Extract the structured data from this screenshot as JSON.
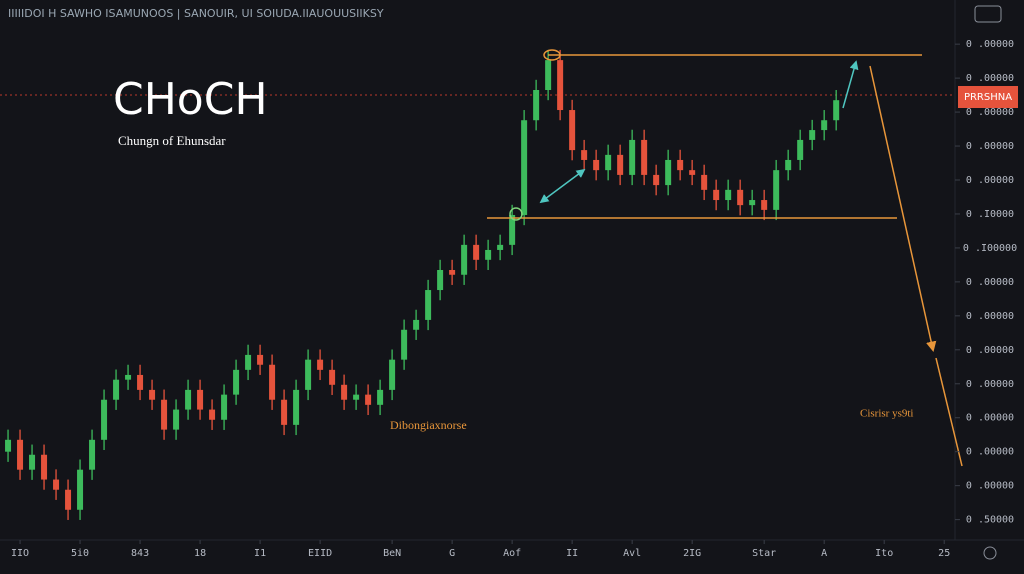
{
  "header": "IIIIIDOI H SAWHO ISAMUNOOS | SANOUIR, UI SOIUDA.IIAUOUUSIIKSY",
  "price_label": "PRRSHNA",
  "chart_data": {
    "type": "candlestick",
    "title": "CHoCH",
    "subtitle": "Chungn of Ehunsdar",
    "annotations": [
      "Dibongiaxnorse",
      "Cisrisr ys9ti"
    ],
    "up_color": "#3dbb5c",
    "down_color": "#e5533c",
    "open": [
      2.0,
      2.35,
      1.47,
      1.91,
      1.18,
      0.88,
      0.29,
      1.47,
      2.35,
      3.53,
      4.12,
      4.26,
      3.82,
      3.53,
      2.65,
      3.24,
      3.82,
      3.24,
      2.94,
      3.68,
      4.41,
      4.85,
      4.56,
      3.53,
      2.79,
      3.82,
      4.71,
      4.41,
      3.97,
      3.53,
      3.68,
      3.38,
      3.82,
      4.71,
      5.59,
      5.88,
      6.76,
      7.35,
      7.21,
      8.09,
      7.65,
      7.94,
      8.09,
      8.97,
      11.76,
      12.65,
      13.53,
      12.06,
      10.88,
      10.59,
      10.29,
      10.74,
      10.15,
      11.18,
      10.15,
      9.85,
      10.59,
      10.29,
      10.15,
      9.71,
      9.41,
      9.71,
      9.26,
      9.41,
      9.12,
      10.29,
      10.59,
      11.18,
      11.47,
      11.76
    ],
    "high": [
      2.65,
      2.65,
      2.21,
      2.21,
      1.48,
      1.18,
      1.77,
      2.65,
      3.83,
      4.42,
      4.56,
      4.56,
      4.12,
      3.83,
      3.54,
      4.12,
      4.12,
      3.54,
      3.98,
      4.71,
      5.15,
      5.15,
      4.86,
      3.83,
      4.12,
      5.01,
      5.01,
      4.71,
      4.27,
      3.98,
      3.98,
      4.12,
      5.01,
      5.89,
      6.18,
      7.06,
      7.65,
      7.65,
      8.39,
      8.39,
      8.24,
      8.39,
      9.27,
      12.06,
      12.95,
      13.83,
      13.83,
      12.36,
      11.18,
      10.89,
      11.04,
      11.04,
      11.48,
      11.48,
      10.45,
      10.89,
      10.89,
      10.59,
      10.45,
      10.01,
      10.01,
      10.01,
      9.71,
      9.71,
      10.59,
      10.89,
      11.48,
      11.77,
      12.06,
      12.65
    ],
    "low": [
      1.7,
      1.17,
      1.17,
      0.88,
      0.58,
      -0.01,
      -0.01,
      1.17,
      2.05,
      3.23,
      3.82,
      3.52,
      3.23,
      2.35,
      2.35,
      2.94,
      2.94,
      2.64,
      2.64,
      3.38,
      4.11,
      4.26,
      3.23,
      2.49,
      2.49,
      3.52,
      4.11,
      3.67,
      3.23,
      3.23,
      3.08,
      3.08,
      3.52,
      4.41,
      5.29,
      5.58,
      6.46,
      6.91,
      6.91,
      7.35,
      7.35,
      7.64,
      7.79,
      8.67,
      11.46,
      12.35,
      11.76,
      10.58,
      10.29,
      9.99,
      9.99,
      9.85,
      9.85,
      9.85,
      9.55,
      9.55,
      9.99,
      9.85,
      9.41,
      9.11,
      9.11,
      8.96,
      8.96,
      8.82,
      8.82,
      9.99,
      10.29,
      10.88,
      11.17,
      11.46
    ],
    "close": [
      2.35,
      1.47,
      1.91,
      1.18,
      0.88,
      0.29,
      1.47,
      2.35,
      3.53,
      4.12,
      4.26,
      3.82,
      3.53,
      2.65,
      3.24,
      3.82,
      3.24,
      2.94,
      3.68,
      4.41,
      4.85,
      4.56,
      3.53,
      2.79,
      3.82,
      4.71,
      4.41,
      3.97,
      3.53,
      3.68,
      3.38,
      3.82,
      4.71,
      5.59,
      5.88,
      6.76,
      7.35,
      7.21,
      8.09,
      7.65,
      7.94,
      8.09,
      8.97,
      11.76,
      12.65,
      13.53,
      12.06,
      10.88,
      10.59,
      10.29,
      10.74,
      10.15,
      11.18,
      10.15,
      9.85,
      10.59,
      10.29,
      10.15,
      9.71,
      9.41,
      9.71,
      9.26,
      9.41,
      9.12,
      10.29,
      10.59,
      11.18,
      11.47,
      11.76,
      12.35
    ],
    "xlim": [
      -0.67,
      78.9
    ],
    "xticks": [
      {
        "value": 1,
        "label": "IIO"
      },
      {
        "value": 6,
        "label": "5i0"
      },
      {
        "value": 11,
        "label": "843"
      },
      {
        "value": 16,
        "label": "18"
      },
      {
        "value": 21,
        "label": "I1"
      },
      {
        "value": 26,
        "label": "EIID"
      },
      {
        "value": 32,
        "label": "BeN"
      },
      {
        "value": 37,
        "label": "G"
      },
      {
        "value": 42,
        "label": "Aof"
      },
      {
        "value": 47,
        "label": "II"
      },
      {
        "value": 52,
        "label": "Avl"
      },
      {
        "value": 57,
        "label": "2IG"
      },
      {
        "value": 63,
        "label": "Star"
      },
      {
        "value": 68,
        "label": "A"
      },
      {
        "value": 73,
        "label": "Ito"
      },
      {
        "value": 78,
        "label": "25"
      }
    ],
    "ylim": [
      -0.6,
      15.3
    ],
    "yticks": [
      {
        "value": 14,
        "label": "0 .00000"
      },
      {
        "value": 13,
        "label": "0 .00000"
      },
      {
        "value": 12,
        "label": "0 .00000"
      },
      {
        "value": 11,
        "label": "0 .00000"
      },
      {
        "value": 10,
        "label": "0 .00000"
      },
      {
        "value": 9,
        "label": "0 .I0000"
      },
      {
        "value": 8,
        "label": "0 .I00000"
      },
      {
        "value": 7,
        "label": "0 .00000"
      },
      {
        "value": 6,
        "label": "0 .00000"
      },
      {
        "value": 5,
        "label": "0 .00000"
      },
      {
        "value": 4,
        "label": "0 .00000"
      },
      {
        "value": 3,
        "label": "0 .00000"
      },
      {
        "value": 2,
        "label": "0 .00000"
      },
      {
        "value": 1,
        "label": "0 .00000"
      },
      {
        "value": 0,
        "label": "0 .50000"
      }
    ]
  }
}
